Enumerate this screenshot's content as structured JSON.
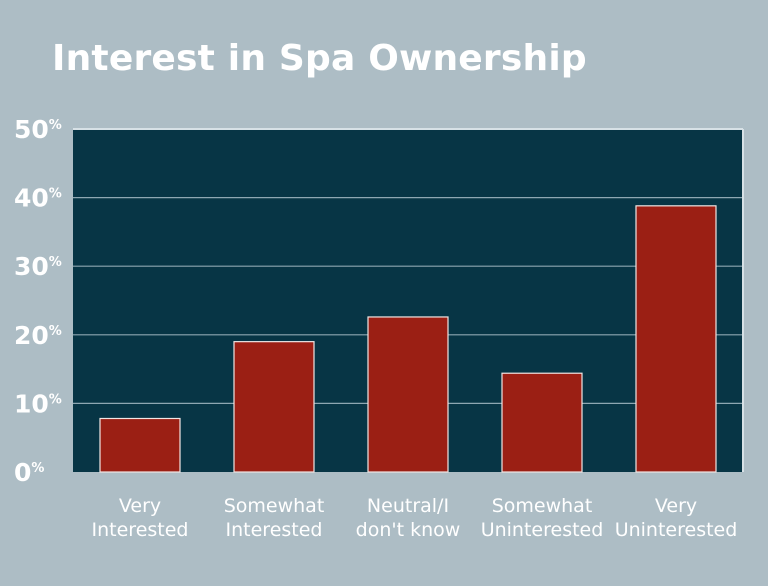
{
  "chart_data": {
    "type": "bar",
    "title": "Interest in Spa Ownership",
    "categories": [
      [
        "Very",
        "Interested"
      ],
      [
        "Somewhat",
        "Interested"
      ],
      [
        "Neutral/I",
        "don't know"
      ],
      [
        "Somewhat",
        "Uninterested"
      ],
      [
        "Very",
        "Uninterested"
      ]
    ],
    "values": [
      7.8,
      19,
      22.6,
      14.4,
      38.8
    ],
    "unit": "%",
    "yticks": [
      0,
      10,
      20,
      30,
      40,
      50
    ],
    "ylim": [
      0,
      50
    ],
    "grid": true,
    "colors": {
      "page_background": "#adbdc5",
      "plot_background": "#073545",
      "bar_fill": "#9b1f14",
      "bar_stroke": "#f1e6e4",
      "gridline": "#8ea7b2",
      "text": "#ffffff"
    }
  }
}
